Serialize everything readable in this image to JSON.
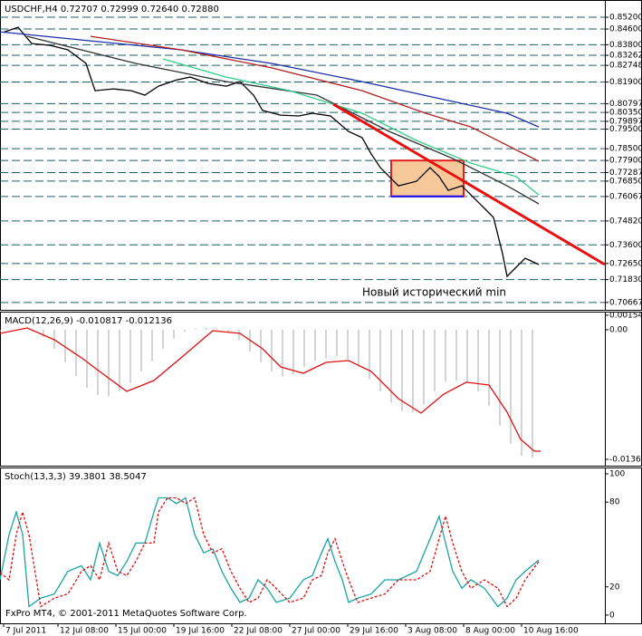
{
  "chart_data": [
    {
      "type": "line",
      "title": "USDCHF,H4  0.72707 0.72999 0.72640 0.72880",
      "annotation": "Новый исторический min",
      "xlim": [
        0,
        167
      ],
      "ylim": [
        0.7029,
        0.8608
      ],
      "grid": true,
      "yticks": [
        {
          "value": 0.852,
          "label": "0.85200"
        },
        {
          "value": 0.846,
          "label": "0.84600"
        },
        {
          "value": 0.838,
          "label": "0.83800"
        },
        {
          "value": 0.83262,
          "label": "0.83262"
        },
        {
          "value": 0.82748,
          "label": "0.82748"
        },
        {
          "value": 0.819,
          "label": "0.81900"
        },
        {
          "value": 0.80797,
          "label": "0.80797"
        },
        {
          "value": 0.8035,
          "label": "0.80350"
        },
        {
          "value": 0.79897,
          "label": "0.79897"
        },
        {
          "value": 0.795,
          "label": "0.79500"
        },
        {
          "value": 0.785,
          "label": "0.78500"
        },
        {
          "value": 0.779,
          "label": "0.77900"
        },
        {
          "value": 0.77287,
          "label": "0.77287"
        },
        {
          "value": 0.7685,
          "label": "0.76850"
        },
        {
          "value": 0.76067,
          "label": "0.76067"
        },
        {
          "value": 0.7482,
          "label": "0.74820"
        },
        {
          "value": 0.736,
          "label": "0.73600"
        },
        {
          "value": 0.7265,
          "label": "0.72650"
        },
        {
          "value": 0.7183,
          "label": "0.71830"
        },
        {
          "value": 0.70667,
          "label": "0.70667"
        }
      ],
      "boxes": [
        {
          "x": [
            108,
            128
          ],
          "y": [
            0.779,
            0.7607
          ],
          "color": "#f7c99a",
          "edge": "#e02020",
          "base": "#1010ff"
        }
      ],
      "series": [
        {
          "color": "#000000",
          "x": [
            1.25,
            5,
            8.75,
            13.75,
            18.75,
            23.75,
            26.25,
            31.25,
            36.25,
            40,
            43.75,
            48.75,
            52.5,
            57.5,
            62.5,
            66.25,
            70,
            72.5,
            77.5,
            82.5,
            86.25,
            91.25,
            96.25,
            100,
            102.5,
            105,
            110,
            115,
            118.75,
            121.25,
            123.75,
            127.5,
            130,
            133.75,
            136.25,
            138.75,
            140,
            142.5,
            145,
            148.75
          ],
          "values": [
            0.8446,
            0.8469,
            0.8386,
            0.8377,
            0.8354,
            0.8285,
            0.8146,
            0.8155,
            0.8146,
            0.8123,
            0.8169,
            0.8201,
            0.8215,
            0.8183,
            0.8169,
            0.8192,
            0.8123,
            0.8045,
            0.8021,
            0.8017,
            0.8031,
            0.8017,
            0.7938,
            0.7906,
            0.7823,
            0.7754,
            0.7661,
            0.7684,
            0.7754,
            0.7708,
            0.7638,
            0.7661,
            0.7615,
            0.7546,
            0.75,
            0.7315,
            0.72,
            0.7246,
            0.7292,
            0.726
          ]
        },
        {
          "color": "#1c2fa8",
          "x": [
            0,
            25,
            50,
            75,
            100,
            125,
            140,
            148.75
          ],
          "values": [
            0.8446,
            0.84,
            0.8354,
            0.8285,
            0.8192,
            0.8091,
            0.8031,
            0.7961
          ]
        },
        {
          "color": "#b02020",
          "x": [
            25,
            50,
            75,
            100,
            117.5,
            130,
            148.75
          ],
          "values": [
            0.8423,
            0.8354,
            0.8262,
            0.8146,
            0.8031,
            0.7961,
            0.7786
          ]
        },
        {
          "color": "#333333",
          "x": [
            7.5,
            37.5,
            62.5,
            87.5,
            107.5,
            125,
            140,
            148.75
          ],
          "values": [
            0.8423,
            0.8285,
            0.8192,
            0.8123,
            0.7938,
            0.78,
            0.7661,
            0.7569
          ]
        },
        {
          "color": "#33cc88",
          "x": [
            45,
            62.5,
            80,
            100,
            115,
            130,
            142.5,
            148.75
          ],
          "values": [
            0.8308,
            0.8215,
            0.8146,
            0.8031,
            0.7892,
            0.7777,
            0.7708,
            0.7615
          ]
        },
        {
          "color": "#e81010",
          "x": [
            92,
            167
          ],
          "values": [
            0.8077,
            0.726
          ]
        }
      ]
    },
    {
      "type": "macd",
      "title": "MACD(12,26,9) -0.010817 -0.012136",
      "xlim": [
        0,
        167
      ],
      "ylim": [
        -0.01434,
        0.00191
      ],
      "grid": false,
      "yticks": [
        {
          "value": 0.00154,
          "label": "0.00154"
        },
        {
          "value": 0,
          "label": "0.00"
        },
        {
          "value": -0.01367,
          "label": "-0.01367"
        }
      ],
      "histogram": {
        "color": "#b8b8b8",
        "x": [
          0,
          3,
          6,
          9,
          12,
          15,
          18,
          21,
          24,
          27,
          30,
          33,
          36,
          39,
          42,
          45,
          48,
          51,
          54,
          57,
          60,
          63,
          66,
          69,
          72,
          75,
          78,
          81,
          84,
          87,
          90,
          93,
          96,
          99,
          102,
          105,
          108,
          111,
          114,
          117,
          120,
          123,
          126,
          129,
          132,
          135,
          138,
          141,
          144,
          147
        ],
        "values": [
          -0.0002,
          0,
          0,
          -0.0002,
          -0.0008,
          -0.002,
          -0.0034,
          -0.0049,
          -0.0061,
          -0.0069,
          -0.007,
          -0.0065,
          -0.0056,
          -0.0044,
          -0.0033,
          -0.002,
          -0.0009,
          -0.0002,
          0.0001,
          0.0002,
          0.0001,
          -0.0002,
          -0.0011,
          -0.0023,
          -0.0034,
          -0.0044,
          -0.0049,
          -0.0047,
          -0.0039,
          -0.0033,
          -0.003,
          -0.0028,
          -0.0031,
          -0.0039,
          -0.0052,
          -0.0065,
          -0.0077,
          -0.0086,
          -0.0087,
          -0.0079,
          -0.0065,
          -0.0055,
          -0.0054,
          -0.0055,
          -0.0065,
          -0.008,
          -0.0101,
          -0.012,
          -0.0133,
          -0.0135
        ]
      },
      "series": [
        {
          "color": "#e01010",
          "x": [
            0,
            7.5,
            15,
            22.5,
            27.5,
            35,
            42.5,
            50,
            58.75,
            66.25,
            72.5,
            77.5,
            83.75,
            90,
            96.25,
            102.5,
            110,
            116.25,
            122.5,
            128.75,
            135,
            140,
            143.75,
            147.5,
            149.25
          ],
          "values": [
            -0.00038,
            0.00019,
            -0.00105,
            -0.00296,
            -0.0044,
            -0.0065,
            -0.00535,
            -0.00296,
            -0.0001,
            -0.00038,
            -0.00201,
            -0.00392,
            -0.00459,
            -0.00344,
            -0.00325,
            -0.0044,
            -0.00727,
            -0.0088,
            -0.00679,
            -0.00554,
            -0.00583,
            -0.0087,
            -0.01157,
            -0.01281,
            -0.01281
          ]
        }
      ]
    },
    {
      "type": "line",
      "title": "Stoch(13,3,3) 39.3801 38.5047",
      "annotation": "FxPro MT4, © 2001-2011 MetaQuotes Software Corp.",
      "xlim": [
        0,
        167
      ],
      "ylim": [
        -5.8,
        104.5
      ],
      "grid": false,
      "yticks": [
        100,
        80,
        20,
        0
      ],
      "xticks": [
        {
          "value": 1,
          "label": "7 Jul 2011"
        },
        {
          "value": 16,
          "label": "12 Jul 08:00"
        },
        {
          "value": 32,
          "label": "15 Jul 00:00"
        },
        {
          "value": 48,
          "label": "19 Jul 16:00"
        },
        {
          "value": 64,
          "label": "22 Jul 08:00"
        },
        {
          "value": 80,
          "label": "27 Jul 00:00"
        },
        {
          "value": 96,
          "label": "29 Jul 16:00"
        },
        {
          "value": 112,
          "label": "3 Aug 08:00"
        },
        {
          "value": 128,
          "label": "8 Aug 00:00"
        },
        {
          "value": 144,
          "label": "10 Aug 16:00"
        }
      ],
      "series": [
        {
          "color": "#1aa3a3",
          "x": [
            0,
            2.5,
            4.5,
            6.25,
            8,
            11.25,
            15,
            18.75,
            22.5,
            25,
            27.5,
            30,
            32.5,
            35,
            37.5,
            40,
            42.5,
            43.75,
            46.25,
            48.75,
            51.25,
            53.75,
            56.25,
            58.75,
            61.25,
            63.75,
            66.25,
            68.75,
            71.25,
            73.75,
            76.25,
            80,
            83.75,
            86.25,
            88.75,
            90.5,
            92.5,
            94.5,
            96.25,
            98.75,
            102.5,
            106.25,
            110,
            115,
            118.75,
            121.25,
            123,
            125,
            127.5,
            130,
            133.75,
            137.5,
            140,
            142.5,
            145,
            148.75
          ],
          "values": [
            25,
            57,
            73,
            57,
            6,
            12,
            15,
            31,
            35,
            25,
            51,
            31,
            28,
            38,
            51,
            51,
            73,
            83,
            83,
            79,
            83,
            57,
            44,
            47,
            31,
            19,
            9,
            12,
            25,
            19,
            9,
            12,
            25,
            28,
            44,
            54,
            38,
            25,
            9,
            12,
            15,
            25,
            25,
            31,
            54,
            70,
            51,
            31,
            19,
            25,
            19,
            6,
            12,
            25,
            31,
            39
          ]
        },
        {
          "color": "#e01010",
          "dashed": true,
          "x": [
            0,
            2.5,
            4.5,
            6.25,
            8,
            11.25,
            15,
            18.75,
            22.5,
            25,
            27.5,
            30,
            32.5,
            35,
            37.5,
            40,
            42.5,
            43.75,
            46.25,
            48.75,
            51.25,
            53.75,
            56.25,
            58.75,
            61.25,
            63.75,
            66.25,
            68.75,
            71.25,
            73.75,
            76.25,
            80,
            83.75,
            86.25,
            88.75,
            90.5,
            92.5,
            94.5,
            96.25,
            98.75,
            102.5,
            106.25,
            110,
            115,
            118.75,
            121.25,
            123,
            125,
            127.5,
            130,
            133.75,
            137.5,
            140,
            142.5,
            145,
            148.75
          ],
          "values": [
            30,
            25,
            57,
            73,
            57,
            6,
            12,
            15,
            31,
            35,
            25,
            51,
            31,
            28,
            38,
            51,
            51,
            73,
            83,
            83,
            79,
            83,
            57,
            44,
            47,
            31,
            19,
            9,
            12,
            25,
            19,
            9,
            12,
            25,
            28,
            44,
            54,
            38,
            25,
            9,
            12,
            15,
            25,
            25,
            31,
            54,
            70,
            51,
            31,
            19,
            25,
            19,
            6,
            12,
            25,
            38
          ]
        }
      ]
    }
  ]
}
